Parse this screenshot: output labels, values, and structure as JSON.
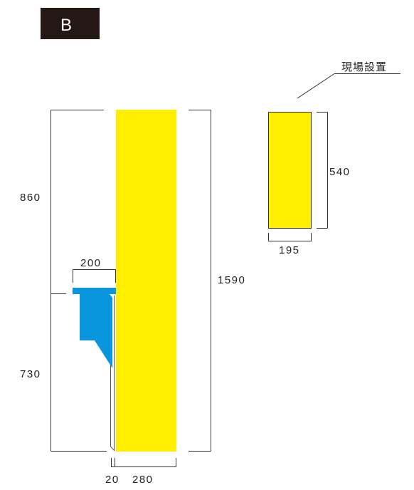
{
  "badge": {
    "label": "B"
  },
  "dimensions": {
    "total_height": "1590",
    "upper_height": "860",
    "lower_height": "730",
    "shelf_width": "200",
    "gap_width": "20",
    "panel_width": "280",
    "small_height": "540",
    "small_width": "195"
  },
  "callout": {
    "label": "現場設置"
  },
  "colors": {
    "panel": "#ffee00",
    "bracket": "#0a96dc",
    "badge_bg": "#231815",
    "line": "#333333"
  }
}
